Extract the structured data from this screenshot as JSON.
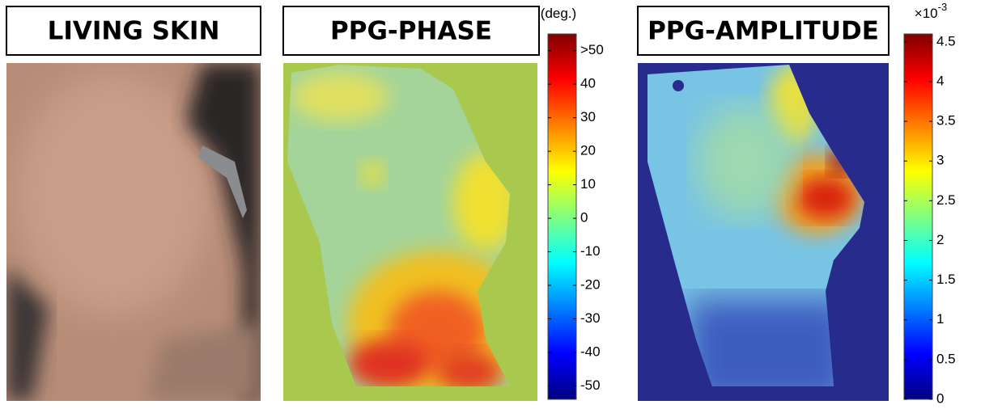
{
  "panels": [
    {
      "title": "LIVING SKIN"
    },
    {
      "title": "PPG-PHASE",
      "colorbar": {
        "unit": "(deg.)",
        "lim": [
          -54,
          55
        ],
        "ticks": [
          -50,
          -40,
          -30,
          -20,
          -10,
          0,
          10,
          20,
          30,
          40,
          {
            "value": 50,
            "label": ">50"
          }
        ]
      }
    },
    {
      "title": "PPG-AMPLITUDE",
      "colorbar": {
        "unit": "×10",
        "unit_exponent": "-3",
        "lim": [
          0,
          4.6
        ],
        "ticks": [
          0,
          0.5,
          1,
          1.5,
          2,
          2.5,
          3,
          3.5,
          4,
          4.5
        ]
      }
    }
  ]
}
